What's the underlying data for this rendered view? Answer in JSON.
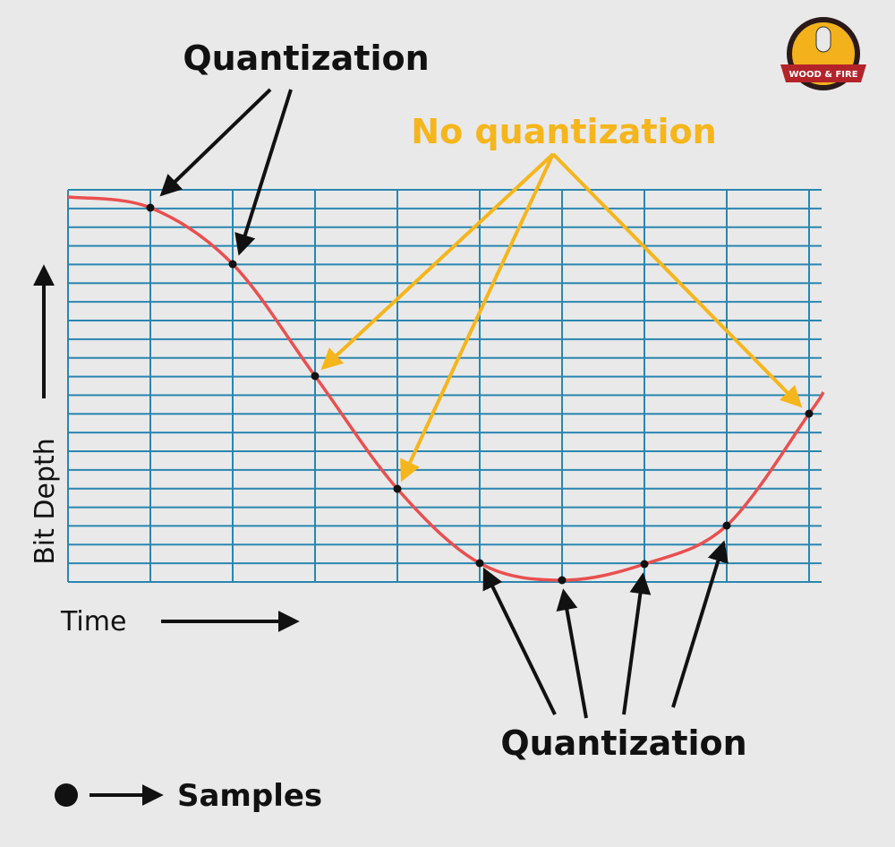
{
  "logo": {
    "text": "WOOD & FIRE"
  },
  "annotations": {
    "top_label": "Quantization",
    "no_quantization": "No quantization",
    "bottom_label": "Quantization"
  },
  "axes": {
    "y_label": "Bit Depth",
    "x_label": "Time"
  },
  "legend": {
    "label": "Samples"
  }
}
